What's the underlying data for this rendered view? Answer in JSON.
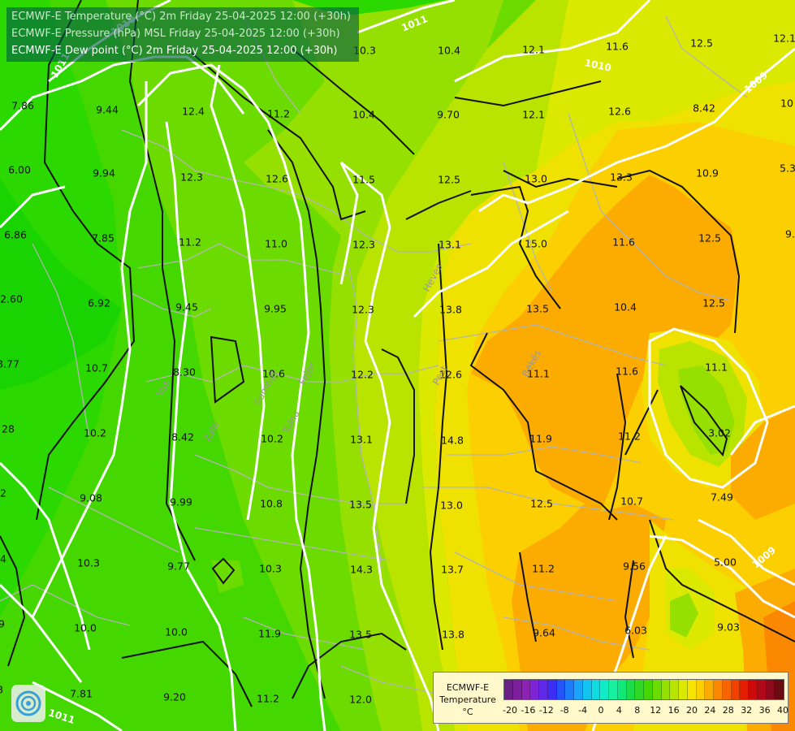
{
  "header": {
    "lines": [
      "ECMWF-E Temperature (°C) 2m Friday 25-04-2025 12:00 (+30h)",
      "ECMWF-E Pressure (hPa) MSL Friday 25-04-2025 12:00 (+30h)",
      "ECMWF-E Dew point (°C) 2m Friday 25-04-2025 12:00 (+30h)"
    ]
  },
  "colors": {
    "c6": "#19d400",
    "c8": "#2bd800",
    "c10": "#44d800",
    "c12": "#6cdc00",
    "c14": "#95e000",
    "c16": "#b8e400",
    "c18": "#dbe800",
    "c20": "#f0e200",
    "c22": "#fcd000",
    "c24": "#fcac00",
    "c28": "#fb8800",
    "isotherm": "#111111",
    "isobar": "#ffffff",
    "border": "#b8b8b8"
  },
  "pressure_labels": [
    "1011",
    "1010",
    "1009",
    "1011",
    "1011",
    "1010",
    "1009"
  ],
  "region_labels": [
    "Heves",
    "Békés",
    "Pest",
    "Vas",
    "Somogy",
    "Zala",
    "Tolna",
    "Fejér"
  ],
  "dewpoint_values": [
    "7.86",
    "9.44",
    "12.4",
    "11.2",
    "10.4",
    "9.70",
    "12.1",
    "12.6",
    "8.42",
    "10.3",
    "10.4",
    "12.1",
    "11.6",
    "12.5",
    "12.1",
    "6.00",
    "9.94",
    "12.3",
    "12.6",
    "11.5",
    "12.5",
    "13.0",
    "13.3",
    "10.9",
    "5.3",
    "6.86",
    "7.85",
    "11.2",
    "11.0",
    "12.3",
    "13.1",
    "15.0",
    "11.6",
    "12.5",
    "9.",
    "2.60",
    "6.92",
    "9.45",
    "9.95",
    "12.3",
    "13.8",
    "13.5",
    "10.4",
    "12.5",
    "10.7",
    "8.30",
    "10.6",
    "12.2",
    "12.6",
    "11.1",
    "11.6",
    "11.1",
    "10.2",
    "8.42",
    "10.2",
    "13.1",
    "14.8",
    "11.9",
    "11.2",
    "3.02",
    "9.08",
    "9.99",
    "10.8",
    "13.5",
    "13.0",
    "12.5",
    "10.7",
    "7.49",
    "10.3",
    "9.77",
    "10.3",
    "14.3",
    "13.7",
    "11.2",
    "9.56",
    "5.00",
    "10.0",
    "10.0",
    "11.9",
    "13.5",
    "13.8",
    "9.64",
    "6.03",
    "9.03",
    "7.81",
    "9.20",
    "11.2",
    "12.0",
    "12",
    "10",
    "3.77",
    "28",
    "2",
    "4",
    "9",
    "8"
  ],
  "legend": {
    "title_lines": [
      "ECMWF-E",
      "Temperature",
      "°C"
    ],
    "ticks": [
      "-20",
      "-16",
      "-12",
      "-8",
      "-4",
      "0",
      "4",
      "8",
      "12",
      "16",
      "20",
      "24",
      "28",
      "32",
      "36",
      "40"
    ],
    "scale_colors": [
      "#6a1f86",
      "#7d1e9c",
      "#8c23b4",
      "#7d25d4",
      "#6028e8",
      "#3c2ef4",
      "#2453f8",
      "#1d7cfa",
      "#1aa4fa",
      "#14c4f0",
      "#10dce0",
      "#12ecc4",
      "#16f0a0",
      "#12e878",
      "#1ddc4a",
      "#2ed824",
      "#44d800",
      "#6cdc00",
      "#95e000",
      "#b8e400",
      "#dbe800",
      "#f6e400",
      "#fcd000",
      "#fcac00",
      "#fb8800",
      "#f86400",
      "#f24000",
      "#e41e00",
      "#cc0a0a",
      "#b00a1a",
      "#8c0a1a",
      "#6c0a12"
    ]
  }
}
